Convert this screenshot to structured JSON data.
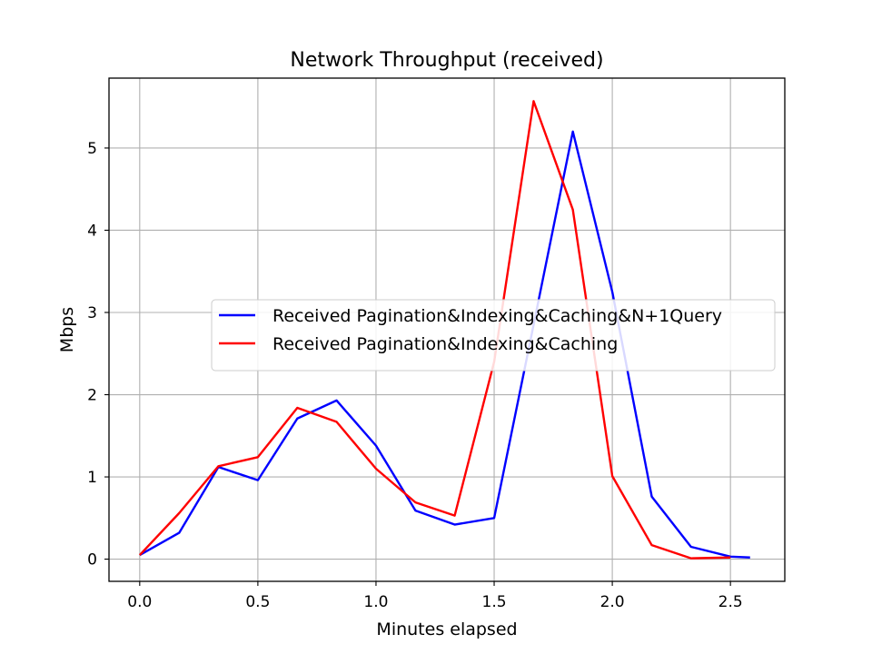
{
  "chart_data": {
    "type": "line",
    "title": "Network Throughput (received)",
    "xlabel": "Minutes elapsed",
    "ylabel": "Mbps",
    "xlim": [
      -0.13,
      2.73
    ],
    "ylim": [
      -0.27,
      5.85
    ],
    "xticks": [
      0.0,
      0.5,
      1.0,
      1.5,
      2.0,
      2.5
    ],
    "xtick_labels": [
      "0.0",
      "0.5",
      "1.0",
      "1.5",
      "2.0",
      "2.5"
    ],
    "yticks": [
      0,
      1,
      2,
      3,
      4,
      5
    ],
    "ytick_labels": [
      "0",
      "1",
      "2",
      "3",
      "4",
      "5"
    ],
    "grid": true,
    "legend_position": "center-right",
    "series": [
      {
        "name": "Received Pagination&Indexing&Caching&N+1Query",
        "color": "#0000ff",
        "x": [
          0.0,
          0.167,
          0.333,
          0.5,
          0.667,
          0.833,
          1.0,
          1.167,
          1.333,
          1.5,
          1.667,
          1.833,
          2.0,
          2.167,
          2.333,
          2.5,
          2.583
        ],
        "y": [
          0.05,
          0.32,
          1.12,
          0.96,
          1.71,
          1.93,
          1.38,
          0.59,
          0.42,
          0.5,
          2.85,
          5.2,
          3.25,
          0.76,
          0.15,
          0.03,
          0.02
        ]
      },
      {
        "name": "Received Pagination&Indexing&Caching",
        "color": "#ff0000",
        "x": [
          0.0,
          0.167,
          0.333,
          0.5,
          0.667,
          0.833,
          1.0,
          1.167,
          1.333,
          1.5,
          1.667,
          1.833,
          2.0,
          2.167,
          2.333,
          2.5
        ],
        "y": [
          0.05,
          0.56,
          1.13,
          1.24,
          1.84,
          1.67,
          1.1,
          0.69,
          0.53,
          2.4,
          5.57,
          4.25,
          1.01,
          0.17,
          0.01,
          0.02
        ]
      }
    ]
  }
}
